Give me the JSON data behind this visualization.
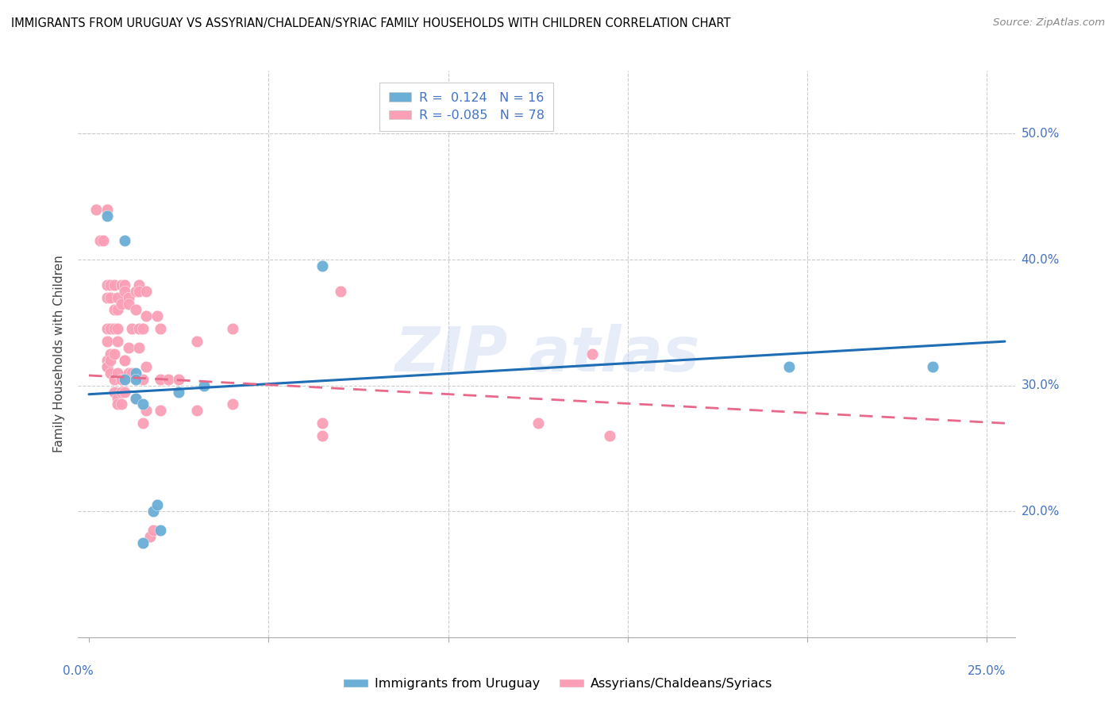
{
  "title": "IMMIGRANTS FROM URUGUAY VS ASSYRIAN/CHALDEAN/SYRIAC FAMILY HOUSEHOLDS WITH CHILDREN CORRELATION CHART",
  "source": "Source: ZipAtlas.com",
  "ylabel": "Family Households with Children",
  "color_blue": "#6baed6",
  "color_pink": "#fa9fb5",
  "color_line_blue": "#1f6db5",
  "color_line_pink": "#e8688a",
  "ymin": 0.1,
  "ymax": 0.55,
  "xmin": -0.003,
  "xmax": 0.258,
  "yticks": [
    0.2,
    0.3,
    0.4,
    0.5
  ],
  "xticks": [
    0.0,
    0.05,
    0.1,
    0.15,
    0.2,
    0.25
  ],
  "blue_points": [
    [
      0.005,
      0.435
    ],
    [
      0.01,
      0.415
    ],
    [
      0.01,
      0.305
    ],
    [
      0.013,
      0.31
    ],
    [
      0.013,
      0.29
    ],
    [
      0.013,
      0.305
    ],
    [
      0.015,
      0.285
    ],
    [
      0.018,
      0.2
    ],
    [
      0.019,
      0.205
    ],
    [
      0.02,
      0.185
    ],
    [
      0.025,
      0.295
    ],
    [
      0.032,
      0.3
    ],
    [
      0.065,
      0.395
    ],
    [
      0.195,
      0.315
    ],
    [
      0.235,
      0.315
    ],
    [
      0.015,
      0.175
    ]
  ],
  "pink_points": [
    [
      0.002,
      0.44
    ],
    [
      0.003,
      0.415
    ],
    [
      0.004,
      0.415
    ],
    [
      0.005,
      0.44
    ],
    [
      0.005,
      0.38
    ],
    [
      0.005,
      0.37
    ],
    [
      0.005,
      0.345
    ],
    [
      0.005,
      0.335
    ],
    [
      0.005,
      0.32
    ],
    [
      0.005,
      0.315
    ],
    [
      0.005,
      0.315
    ],
    [
      0.006,
      0.38
    ],
    [
      0.006,
      0.37
    ],
    [
      0.006,
      0.345
    ],
    [
      0.006,
      0.325
    ],
    [
      0.006,
      0.32
    ],
    [
      0.006,
      0.31
    ],
    [
      0.007,
      0.38
    ],
    [
      0.007,
      0.36
    ],
    [
      0.007,
      0.345
    ],
    [
      0.007,
      0.325
    ],
    [
      0.007,
      0.305
    ],
    [
      0.007,
      0.295
    ],
    [
      0.008,
      0.37
    ],
    [
      0.008,
      0.36
    ],
    [
      0.008,
      0.345
    ],
    [
      0.008,
      0.335
    ],
    [
      0.008,
      0.31
    ],
    [
      0.008,
      0.29
    ],
    [
      0.008,
      0.285
    ],
    [
      0.009,
      0.38
    ],
    [
      0.009,
      0.365
    ],
    [
      0.009,
      0.305
    ],
    [
      0.009,
      0.295
    ],
    [
      0.009,
      0.285
    ],
    [
      0.01,
      0.38
    ],
    [
      0.01,
      0.375
    ],
    [
      0.01,
      0.32
    ],
    [
      0.01,
      0.32
    ],
    [
      0.01,
      0.295
    ],
    [
      0.011,
      0.37
    ],
    [
      0.011,
      0.365
    ],
    [
      0.011,
      0.33
    ],
    [
      0.011,
      0.31
    ],
    [
      0.012,
      0.345
    ],
    [
      0.012,
      0.31
    ],
    [
      0.013,
      0.375
    ],
    [
      0.013,
      0.36
    ],
    [
      0.013,
      0.29
    ],
    [
      0.014,
      0.38
    ],
    [
      0.014,
      0.375
    ],
    [
      0.014,
      0.345
    ],
    [
      0.014,
      0.33
    ],
    [
      0.015,
      0.345
    ],
    [
      0.015,
      0.305
    ],
    [
      0.015,
      0.27
    ],
    [
      0.016,
      0.375
    ],
    [
      0.016,
      0.355
    ],
    [
      0.016,
      0.315
    ],
    [
      0.016,
      0.28
    ],
    [
      0.017,
      0.18
    ],
    [
      0.018,
      0.185
    ],
    [
      0.019,
      0.355
    ],
    [
      0.02,
      0.345
    ],
    [
      0.02,
      0.305
    ],
    [
      0.02,
      0.28
    ],
    [
      0.022,
      0.305
    ],
    [
      0.025,
      0.305
    ],
    [
      0.03,
      0.335
    ],
    [
      0.03,
      0.28
    ],
    [
      0.04,
      0.345
    ],
    [
      0.04,
      0.285
    ],
    [
      0.065,
      0.27
    ],
    [
      0.065,
      0.26
    ],
    [
      0.07,
      0.375
    ],
    [
      0.125,
      0.27
    ],
    [
      0.14,
      0.325
    ],
    [
      0.145,
      0.26
    ]
  ],
  "blue_line_x": [
    0.0,
    0.255
  ],
  "blue_line_y": [
    0.293,
    0.335
  ],
  "pink_line_x": [
    0.0,
    0.255
  ],
  "pink_line_y": [
    0.308,
    0.27
  ]
}
